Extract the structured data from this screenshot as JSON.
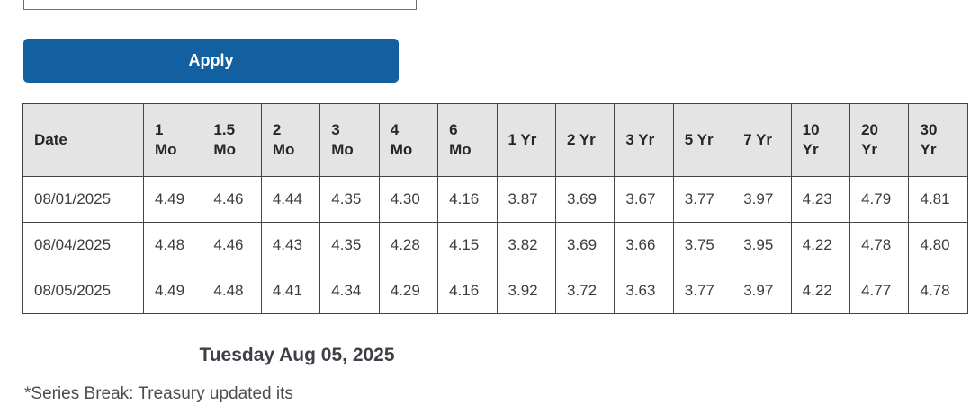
{
  "form": {
    "date_input": {
      "value": "",
      "placeholder": ""
    },
    "apply_label": "Apply"
  },
  "colors": {
    "button_blue": "#12609f",
    "header_bg": "#e4e4e4",
    "border_dark": "#454545",
    "text_dark": "#3c3c3c"
  },
  "table": {
    "headers": [
      "Date",
      "1\nMo",
      "1.5\nMo",
      "2\nMo",
      "3\nMo",
      "4\nMo",
      "6\nMo",
      "1 Yr",
      "2 Yr",
      "3 Yr",
      "5 Yr",
      "7 Yr",
      "10\nYr",
      "20\nYr",
      "30\nYr"
    ],
    "rows": [
      {
        "date": "08/01/2025",
        "values": [
          "4.49",
          "4.46",
          "4.44",
          "4.35",
          "4.30",
          "4.16",
          "3.87",
          "3.69",
          "3.67",
          "3.77",
          "3.97",
          "4.23",
          "4.79",
          "4.81"
        ]
      },
      {
        "date": "08/04/2025",
        "values": [
          "4.48",
          "4.46",
          "4.43",
          "4.35",
          "4.28",
          "4.15",
          "3.82",
          "3.69",
          "3.66",
          "3.75",
          "3.95",
          "4.22",
          "4.78",
          "4.80"
        ]
      },
      {
        "date": "08/05/2025",
        "values": [
          "4.49",
          "4.48",
          "4.41",
          "4.34",
          "4.29",
          "4.16",
          "3.92",
          "3.72",
          "3.63",
          "3.77",
          "3.97",
          "4.22",
          "4.77",
          "4.78"
        ]
      }
    ]
  },
  "caption": "Tuesday Aug 05, 2025",
  "footnote": "*Series Break: Treasury updated its"
}
